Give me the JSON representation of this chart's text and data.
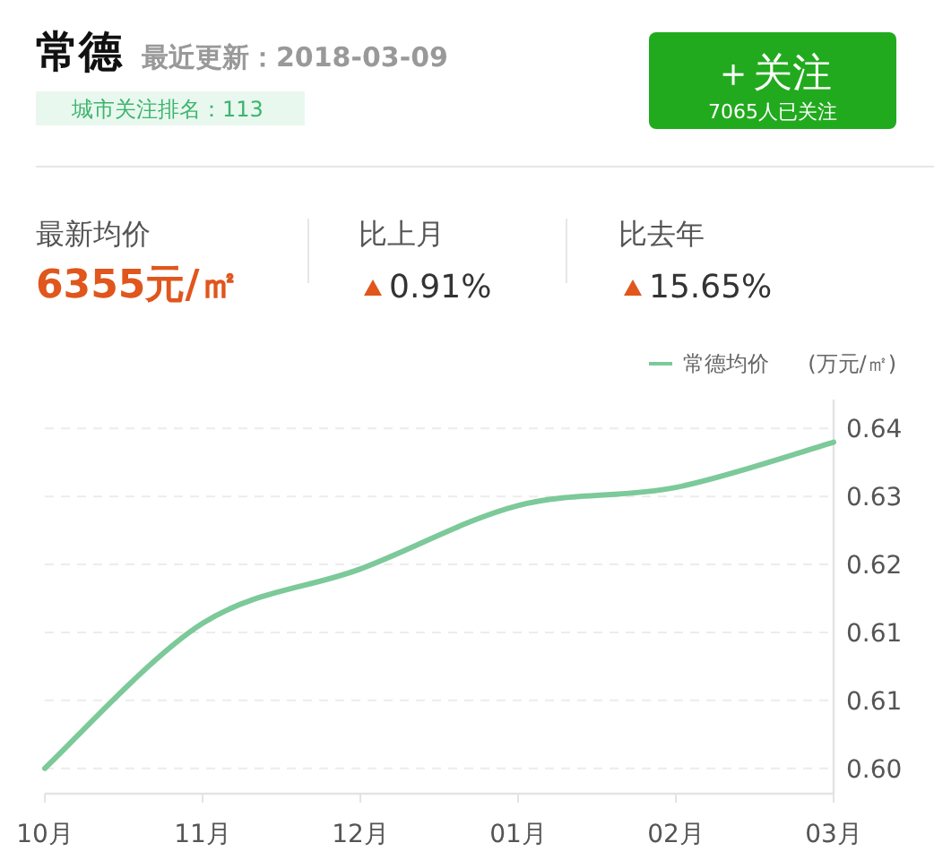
{
  "chart_data": {
    "type": "line",
    "title": "常德",
    "subtitle": "最近更新：2018-03-09",
    "annotations": [
      "城市关注排名：113",
      "＋关注",
      "7065人已关注",
      "最新均价",
      "6355元/㎡",
      "比上月",
      "0.91%",
      "比去年",
      "15.65%"
    ],
    "ylabel": "(万元/㎡)",
    "categories": [
      "10月",
      "11月",
      "12月",
      "01月",
      "02月",
      "03月"
    ],
    "series": [
      {
        "name": "常德均价",
        "color": "#7cc99a",
        "values": [
          0.6,
          0.616,
          0.622,
          0.629,
          0.631,
          0.636
        ]
      }
    ],
    "ylim": [
      0.5972,
      0.6407
    ],
    "yticks": [
      {
        "value": 0.6,
        "label": "0.60"
      },
      {
        "value": 0.6075,
        "label": "0.61"
      },
      {
        "value": 0.615,
        "label": "0.61"
      },
      {
        "value": 0.6225,
        "label": "0.62"
      },
      0.63,
      {
        "value": 0.6375,
        "label": "0.64"
      }
    ],
    "grid": "y",
    "legend": "top right",
    "marker": "none",
    "line_style": "solid"
  }
}
